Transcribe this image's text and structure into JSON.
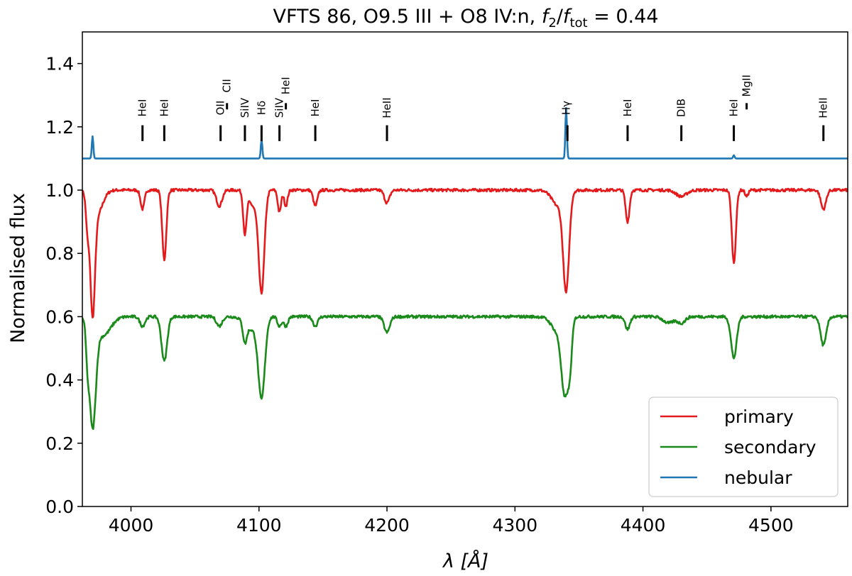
{
  "chart_data": {
    "type": "line",
    "title": {
      "prefix": "VFTS 86, O9.5 III + O8 IV:n, ",
      "f_symbol": "f",
      "numerator_sub": "2",
      "denominator_sub": "tot",
      "suffix": " = 0.44"
    },
    "xlabel": {
      "lambda": "λ",
      "unit": "[Å]"
    },
    "ylabel": "Normalised flux",
    "xlim": [
      3962,
      4560
    ],
    "ylim": [
      0.0,
      1.5
    ],
    "xticks": [
      "4000",
      "4100",
      "4200",
      "4300",
      "4400",
      "4500"
    ],
    "yticks": [
      "0.0",
      "0.2",
      "0.4",
      "0.6",
      "0.8",
      "1.0",
      "1.2",
      "1.4"
    ],
    "legend_position": "lower-right",
    "series": [
      {
        "name": "primary",
        "color": "#e41a1c",
        "continuum": 1.0,
        "lines": [
          {
            "center": 3966,
            "depth": 0.1,
            "width": 1.2
          },
          {
            "center": 3970,
            "depth": 0.34,
            "width": 1.8
          },
          {
            "center": 3973,
            "depth": 0.08,
            "width": 4.5
          },
          {
            "center": 4009,
            "depth": 0.06,
            "width": 1.5
          },
          {
            "center": 4026,
            "depth": 0.22,
            "width": 1.6
          },
          {
            "center": 4069,
            "depth": 0.05,
            "width": 2.2
          },
          {
            "center": 4089,
            "depth": 0.13,
            "width": 1.3
          },
          {
            "center": 4102,
            "depth": 0.31,
            "width": 2.2
          },
          {
            "center": 4096,
            "depth": 0.05,
            "width": 4.0
          },
          {
            "center": 4116,
            "depth": 0.07,
            "width": 1.3
          },
          {
            "center": 4121,
            "depth": 0.05,
            "width": 1.3
          },
          {
            "center": 4144,
            "depth": 0.05,
            "width": 1.6
          },
          {
            "center": 4200,
            "depth": 0.04,
            "width": 2.0
          },
          {
            "center": 4340,
            "depth": 0.3,
            "width": 2.3
          },
          {
            "center": 4334,
            "depth": 0.05,
            "width": 5.0
          },
          {
            "center": 4388,
            "depth": 0.1,
            "width": 1.5
          },
          {
            "center": 4430,
            "depth": 0.02,
            "width": 4.0
          },
          {
            "center": 4471,
            "depth": 0.23,
            "width": 1.6
          },
          {
            "center": 4481,
            "depth": 0.02,
            "width": 1.2
          },
          {
            "center": 4541,
            "depth": 0.06,
            "width": 2.0
          }
        ]
      },
      {
        "name": "secondary",
        "color": "#1a8a1a",
        "continuum": 0.6,
        "lines": [
          {
            "center": 3966,
            "depth": 0.09,
            "width": 1.2
          },
          {
            "center": 3970,
            "depth": 0.33,
            "width": 2.5
          },
          {
            "center": 3978,
            "depth": 0.06,
            "width": 6.0
          },
          {
            "center": 4009,
            "depth": 0.03,
            "width": 2.0
          },
          {
            "center": 4026,
            "depth": 0.14,
            "width": 2.2
          },
          {
            "center": 4069,
            "depth": 0.03,
            "width": 2.2
          },
          {
            "center": 4089,
            "depth": 0.06,
            "width": 1.5
          },
          {
            "center": 4102,
            "depth": 0.25,
            "width": 2.6
          },
          {
            "center": 4094,
            "depth": 0.04,
            "width": 5.0
          },
          {
            "center": 4116,
            "depth": 0.03,
            "width": 1.6
          },
          {
            "center": 4121,
            "depth": 0.03,
            "width": 1.6
          },
          {
            "center": 4144,
            "depth": 0.03,
            "width": 1.8
          },
          {
            "center": 4200,
            "depth": 0.05,
            "width": 2.2
          },
          {
            "center": 4339,
            "depth": 0.22,
            "width": 2.6
          },
          {
            "center": 4343,
            "depth": 0.12,
            "width": 1.6
          },
          {
            "center": 4334,
            "depth": 0.05,
            "width": 5.0
          },
          {
            "center": 4388,
            "depth": 0.04,
            "width": 1.8
          },
          {
            "center": 4420,
            "depth": 0.02,
            "width": 4.0
          },
          {
            "center": 4430,
            "depth": 0.02,
            "width": 3.0
          },
          {
            "center": 4471,
            "depth": 0.13,
            "width": 2.2
          },
          {
            "center": 4541,
            "depth": 0.09,
            "width": 2.2
          }
        ]
      },
      {
        "name": "nebular",
        "color": "#1f77b4",
        "continuum": 1.1,
        "lines": [
          {
            "center": 3970,
            "depth": -0.07,
            "width": 0.6
          },
          {
            "center": 4102,
            "depth": -0.06,
            "width": 0.6
          },
          {
            "center": 4340,
            "depth": -0.16,
            "width": 0.6
          },
          {
            "center": 4471,
            "depth": -0.01,
            "width": 0.6
          }
        ]
      }
    ],
    "line_ids": [
      {
        "label": "HeI",
        "wavelength": 4009,
        "label_y": 1.26
      },
      {
        "label": "HeI",
        "wavelength": 4026,
        "label_y": 1.26
      },
      {
        "label": "OII",
        "wavelength": 4070,
        "label_y": 1.26
      },
      {
        "label": "CII",
        "wavelength": 4075,
        "label_y": 1.33
      },
      {
        "label": "SiIV",
        "wavelength": 4089,
        "label_y": 1.26
      },
      {
        "label": "Hδ",
        "wavelength": 4102,
        "label_y": 1.26
      },
      {
        "label": "SiIV",
        "wavelength": 4116,
        "label_y": 1.26
      },
      {
        "label": "HeI",
        "wavelength": 4121,
        "label_y": 1.33
      },
      {
        "label": "HeI",
        "wavelength": 4144,
        "label_y": 1.26
      },
      {
        "label": "HeII",
        "wavelength": 4200,
        "label_y": 1.26
      },
      {
        "label": "Hγ",
        "wavelength": 4340,
        "label_y": 1.26
      },
      {
        "label": "HeI",
        "wavelength": 4388,
        "label_y": 1.26
      },
      {
        "label": "DIB",
        "wavelength": 4430,
        "label_y": 1.26
      },
      {
        "label": "HeI",
        "wavelength": 4471,
        "label_y": 1.26
      },
      {
        "label": "MgII",
        "wavelength": 4481,
        "label_y": 1.33
      },
      {
        "label": "HeII",
        "wavelength": 4541,
        "label_y": 1.26
      }
    ],
    "tick_marks": [
      {
        "wavelength": 4009,
        "y": [
          1.155,
          1.205
        ]
      },
      {
        "wavelength": 4026,
        "y": [
          1.155,
          1.205
        ]
      },
      {
        "wavelength": 4070,
        "y": [
          1.155,
          1.205
        ]
      },
      {
        "wavelength": 4075,
        "y": [
          1.255,
          1.275
        ]
      },
      {
        "wavelength": 4089,
        "y": [
          1.155,
          1.205
        ]
      },
      {
        "wavelength": 4102,
        "y": [
          1.155,
          1.205
        ]
      },
      {
        "wavelength": 4116,
        "y": [
          1.155,
          1.205
        ]
      },
      {
        "wavelength": 4121,
        "y": [
          1.255,
          1.275
        ]
      },
      {
        "wavelength": 4144,
        "y": [
          1.155,
          1.205
        ]
      },
      {
        "wavelength": 4200,
        "y": [
          1.155,
          1.205
        ]
      },
      {
        "wavelength": 4341,
        "y": [
          1.155,
          1.205
        ]
      },
      {
        "wavelength": 4388,
        "y": [
          1.155,
          1.205
        ]
      },
      {
        "wavelength": 4430,
        "y": [
          1.155,
          1.205
        ]
      },
      {
        "wavelength": 4471,
        "y": [
          1.155,
          1.205
        ]
      },
      {
        "wavelength": 4481,
        "y": [
          1.255,
          1.275
        ]
      },
      {
        "wavelength": 4541,
        "y": [
          1.155,
          1.205
        ]
      }
    ]
  }
}
